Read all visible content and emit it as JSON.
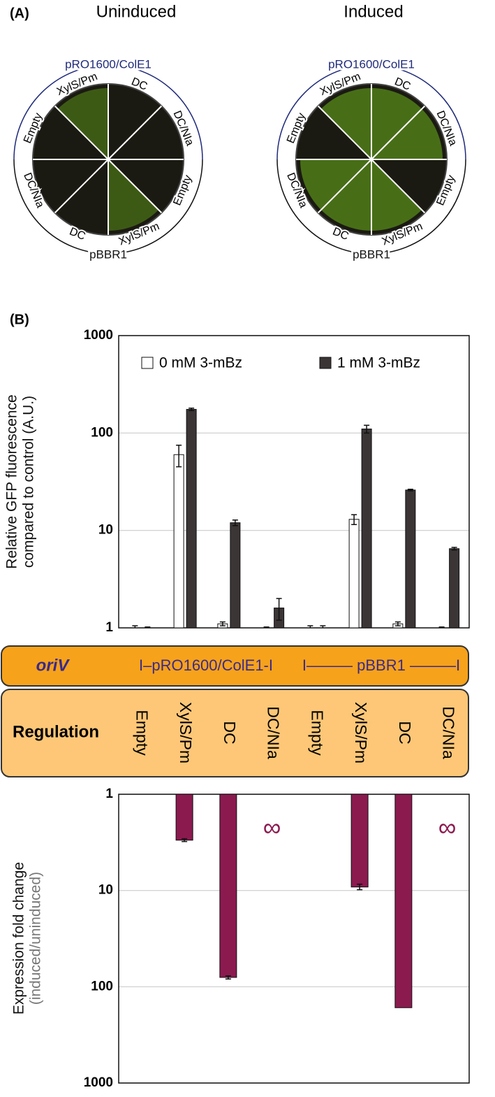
{
  "panel_a": {
    "label": "(A)",
    "plates": [
      {
        "title": "Uninduced",
        "top_arc": "pRO1600/ColE1",
        "bottom_arc": "pBBR1",
        "sectors": [
          "XylS/Pm",
          "DC",
          "DC/NIa",
          "Empty",
          "XylS/Pm",
          "DC",
          "DC/NIa",
          "Empty"
        ]
      },
      {
        "title": "Induced",
        "top_arc": "pRO1600/ColE1",
        "bottom_arc": "pBBR1",
        "sectors": [
          "XylS/Pm",
          "DC",
          "DC/NIa",
          "Empty",
          "XylS/Pm",
          "DC",
          "DC/NIa",
          "Empty"
        ]
      }
    ]
  },
  "panel_b_label": "(B)",
  "table": {
    "oriv_label": "oriV",
    "oriv_groups": [
      "I–pRO1600/ColE1-I",
      "I——— pBBR1 ———I"
    ],
    "regulation_label": "Regulation"
  },
  "chart_data": [
    {
      "type": "bar",
      "ylabel": [
        "Relative GFP fluorescence",
        "compared to control (A.U.)"
      ],
      "categories": [
        "Empty",
        "XylS/Pm",
        "DC",
        "DC/NIa",
        "Empty",
        "XylS/Pm",
        "DC",
        "DC/NIa"
      ],
      "series": [
        {
          "name": "0 mM 3-mBz",
          "color": "#ffffff",
          "values": [
            1.0,
            60,
            1.1,
            1.0,
            1.0,
            13,
            1.1,
            1.0
          ],
          "errors": [
            0.05,
            15,
            0.05,
            0.02,
            0.05,
            1.5,
            0.05,
            0.02
          ]
        },
        {
          "name": "1 mM 3-mBz",
          "color": "#3b3536",
          "values": [
            1.0,
            175,
            12,
            1.6,
            1.0,
            110,
            26,
            6.5
          ],
          "errors": [
            0.02,
            5,
            0.8,
            0.4,
            0.05,
            10,
            0.5,
            0.2
          ]
        }
      ],
      "log_scale": true,
      "ylim": [
        1,
        1000
      ],
      "yticks": [
        1,
        10,
        100,
        1000
      ],
      "grid": true,
      "legend": "top"
    },
    {
      "type": "bar",
      "ylabel": [
        "Expression fold change",
        "(induced/uninduced)"
      ],
      "values": [
        null,
        3.0,
        80,
        null,
        null,
        9.2,
        165,
        null
      ],
      "errors": [
        null,
        0.1,
        3,
        null,
        null,
        0.6,
        null,
        null
      ],
      "value_labels": [
        null,
        null,
        null,
        "∞",
        null,
        null,
        null,
        "∞"
      ],
      "color": "#8b1a4f",
      "log_scale": true,
      "y_inverted": true,
      "ylim": [
        1,
        1000
      ],
      "yticks": [
        1,
        10,
        100,
        1000
      ],
      "grid": true
    }
  ]
}
